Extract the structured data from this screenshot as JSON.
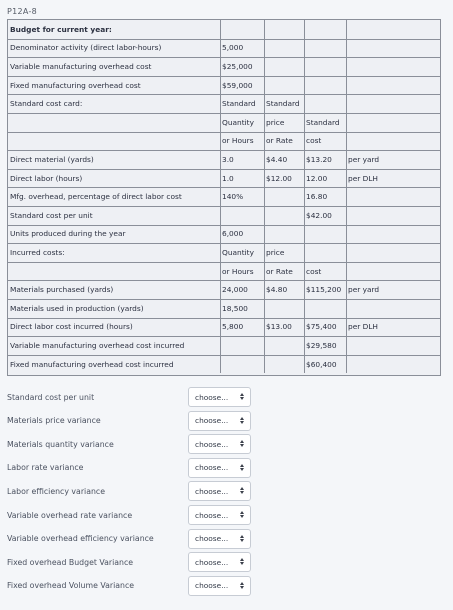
{
  "page": {
    "title": "P12A-8"
  },
  "table": {
    "rows": [
      {
        "label": "Budget for current year:",
        "c1": "",
        "c2": "",
        "c3": "",
        "c4": "",
        "bold": true
      },
      {
        "label": "Denominator activity (direct labor-hours)",
        "c1": "5,000",
        "c2": "",
        "c3": "",
        "c4": ""
      },
      {
        "label": "Variable manufacturing overhead cost",
        "c1": "$25,000",
        "c2": "",
        "c3": "",
        "c4": ""
      },
      {
        "label": "Fixed manufacturing overhead cost",
        "c1": "$59,000",
        "c2": "",
        "c3": "",
        "c4": ""
      },
      {
        "label": "Standard cost card:",
        "c1": "Standard",
        "c2": "Standard",
        "c3": "",
        "c4": ""
      },
      {
        "label": "",
        "c1": "Quantity",
        "c2": "price",
        "c3": "Standard",
        "c4": ""
      },
      {
        "label": "",
        "c1": "or Hours",
        "c2": "or Rate",
        "c3": "cost",
        "c4": ""
      },
      {
        "label": "Direct material (yards)",
        "c1": "3.0",
        "c2": "$4.40",
        "c3": "$13.20",
        "c4": "per yard"
      },
      {
        "label": "Direct labor (hours)",
        "c1": "1.0",
        "c2": "$12.00",
        "c3": "12.00",
        "c4": "per DLH"
      },
      {
        "label": "Mfg. overhead, percentage of direct labor cost",
        "c1": "140%",
        "c2": "",
        "c3": "16.80",
        "c4": ""
      },
      {
        "label": "Standard cost per unit",
        "c1": "",
        "c2": "",
        "c3": "$42.00",
        "c4": ""
      },
      {
        "label": "Units produced during the year",
        "c1": "6,000",
        "c2": "",
        "c3": "",
        "c4": ""
      },
      {
        "label": "Incurred costs:",
        "c1": "Quantity",
        "c2": "price",
        "c3": "",
        "c4": ""
      },
      {
        "label": "",
        "c1": "or Hours",
        "c2": "or Rate",
        "c3": "cost",
        "c4": ""
      },
      {
        "label": "Materials purchased (yards)",
        "c1": "24,000",
        "c2": "$4.80",
        "c3": "$115,200",
        "c4": "per yard"
      },
      {
        "label": "Materials used in production (yards)",
        "c1": "18,500",
        "c2": "",
        "c3": "",
        "c4": ""
      },
      {
        "label": "Direct labor cost incurred (hours)",
        "c1": "5,800",
        "c2": "$13.00",
        "c3": "$75,400",
        "c4": "per DLH"
      },
      {
        "label": "Variable manufacturing overhead cost incurred",
        "c1": "",
        "c2": "",
        "c3": "$29,580",
        "c4": ""
      },
      {
        "label": "Fixed manufacturing overhead cost incurred",
        "c1": "",
        "c2": "",
        "c3": "$60,400",
        "c4": ""
      }
    ]
  },
  "questions": [
    {
      "label": "Standard cost per unit",
      "select": "choose..."
    },
    {
      "label": "Materials price variance",
      "select": "choose..."
    },
    {
      "label": "Materials quantity variance",
      "select": "choose..."
    },
    {
      "label": "Labor rate variance",
      "select": "choose..."
    },
    {
      "label": "Labor efficiency variance",
      "select": "choose..."
    },
    {
      "label": "Variable overhead rate variance",
      "select": "choose..."
    },
    {
      "label": "Variable overhead efficiency variance",
      "select": "choose..."
    },
    {
      "label": "Fixed overhead Budget Variance",
      "select": "choose..."
    },
    {
      "label": "Fixed overhead Volume Variance",
      "select": "choose..."
    }
  ]
}
